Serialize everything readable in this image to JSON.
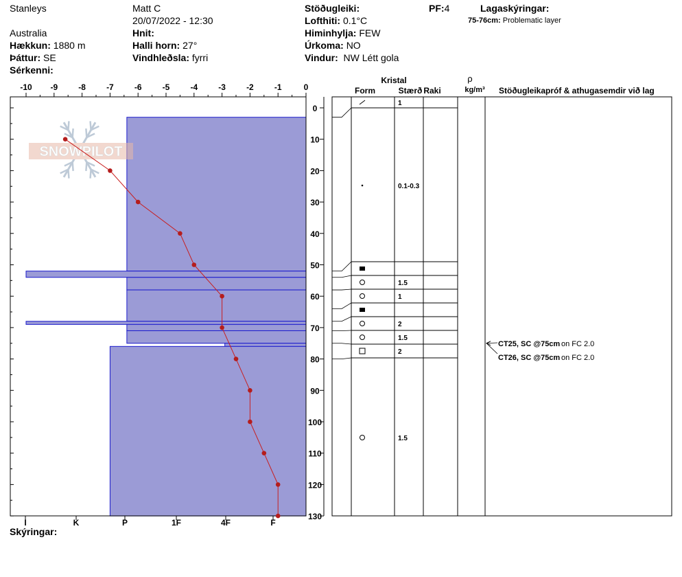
{
  "header": {
    "location": "Stanleys",
    "country": "Australia",
    "elevation_label": "Hækkun:",
    "elevation_value": "1880 m",
    "aspect_label": "Þáttur:",
    "aspect_value": "SE",
    "features_label": "Sérkenni:",
    "observer": "Matt C",
    "datetime": "20/07/2022 - 12:30",
    "coords_label": "Hnit:",
    "slope_label": "Halli horn:",
    "slope_value": "27°",
    "wind_loading_label": "Vindhleðsla:",
    "wind_loading_value": "fyrri",
    "stability_label": "Stöðugleiki:",
    "air_temp_label": "Lofthiti:",
    "air_temp_value": "0.1°C",
    "sky_label": "Himinhylja:",
    "sky_value": "FEW",
    "precip_label": "Úrkoma:",
    "precip_value": "NO",
    "wind_label": "Vindur:",
    "wind_value": "NW Létt gola",
    "pf_label": "PF:",
    "pf_value": "4",
    "layer_notes_label": "Lagaskýringar:",
    "layer_note_range": "75-76cm:",
    "layer_note_text": "Problematic layer"
  },
  "footer": {
    "notes_label": "Skýringar:"
  },
  "logo": {
    "text": "SNOWPILOT"
  },
  "colors": {
    "hardness_fill": "#9b9bd6",
    "hardness_stroke": "#1a1acc",
    "temp_line": "#c81e1e"
  },
  "table_headers": {
    "kristal": "Kristal",
    "form": "Form",
    "size": "Stærð",
    "moisture": "Raki",
    "density_symbol": "ρ",
    "density_unit": "kg/m³",
    "tests": "Stöðugleikapróf & athugasemdir við lag"
  },
  "chart_data": {
    "type": "snow-profile",
    "depth_axis": {
      "min": 0,
      "max": 130,
      "ticks": [
        0,
        10,
        20,
        30,
        40,
        50,
        60,
        70,
        80,
        90,
        100,
        110,
        120,
        130
      ]
    },
    "temp_axis": {
      "min": -10,
      "max": 0,
      "ticks": [
        "-10",
        "-9",
        "-8",
        "-7",
        "-6",
        "-5",
        "-4",
        "-3",
        "-2",
        "-1",
        "0"
      ]
    },
    "hardness_axis": {
      "labels": [
        "I",
        "K",
        "P",
        "1F",
        "4F",
        "F"
      ]
    },
    "hardness_layers": [
      {
        "top": 3,
        "bottom": 52,
        "temp_extent": -6.4
      },
      {
        "top": 52,
        "bottom": 54,
        "temp_extent": -10
      },
      {
        "top": 54,
        "bottom": 58,
        "temp_extent": -6.4
      },
      {
        "top": 58,
        "bottom": 68,
        "temp_extent": -6.4
      },
      {
        "top": 68,
        "bottom": 69,
        "temp_extent": -10
      },
      {
        "top": 69,
        "bottom": 71,
        "temp_extent": -6.4
      },
      {
        "top": 71,
        "bottom": 75,
        "temp_extent": -6.4
      },
      {
        "top": 75,
        "bottom": 76,
        "temp_extent": -2.9
      },
      {
        "top": 76,
        "bottom": 130,
        "temp_extent": -7
      }
    ],
    "temperature_profile": [
      {
        "depth": 10,
        "temp": -8.6
      },
      {
        "depth": 20,
        "temp": -7
      },
      {
        "depth": 30,
        "temp": -6
      },
      {
        "depth": 40,
        "temp": -4.5
      },
      {
        "depth": 50,
        "temp": -4
      },
      {
        "depth": 60,
        "temp": -3
      },
      {
        "depth": 70,
        "temp": -3
      },
      {
        "depth": 80,
        "temp": -2.5
      },
      {
        "depth": 90,
        "temp": -2
      },
      {
        "depth": 100,
        "temp": -2
      },
      {
        "depth": 110,
        "temp": -1.5
      },
      {
        "depth": 120,
        "temp": -1
      },
      {
        "depth": 130,
        "temp": -1
      }
    ],
    "layers_table": [
      {
        "top": 0,
        "bottom": 3,
        "form": "dash",
        "size": "1"
      },
      {
        "top": 3,
        "bottom": 52,
        "form": "dot",
        "size": "0.1-0.3"
      },
      {
        "top": 52,
        "bottom": 54,
        "form": "square-filled",
        "size": ""
      },
      {
        "top": 54,
        "bottom": 58,
        "form": "circle",
        "size": "1.5"
      },
      {
        "top": 58,
        "bottom": 64,
        "form": "circle",
        "size": "1"
      },
      {
        "top": 64,
        "bottom": 68,
        "form": "square-filled",
        "size": ""
      },
      {
        "top": 68,
        "bottom": 71,
        "form": "circle",
        "size": "2"
      },
      {
        "top": 71,
        "bottom": 75,
        "form": "circle",
        "size": "1.5"
      },
      {
        "top": 75,
        "bottom": 80,
        "form": "square-open",
        "size": "2"
      },
      {
        "top": 80,
        "bottom": 130,
        "form": "circle",
        "size": "1.5"
      }
    ],
    "tests": [
      {
        "label": "CT25, SC @75cm",
        "result": "on FC 2.0"
      },
      {
        "label": "CT26, SC @75cm",
        "result": "on FC 2.0"
      }
    ]
  }
}
